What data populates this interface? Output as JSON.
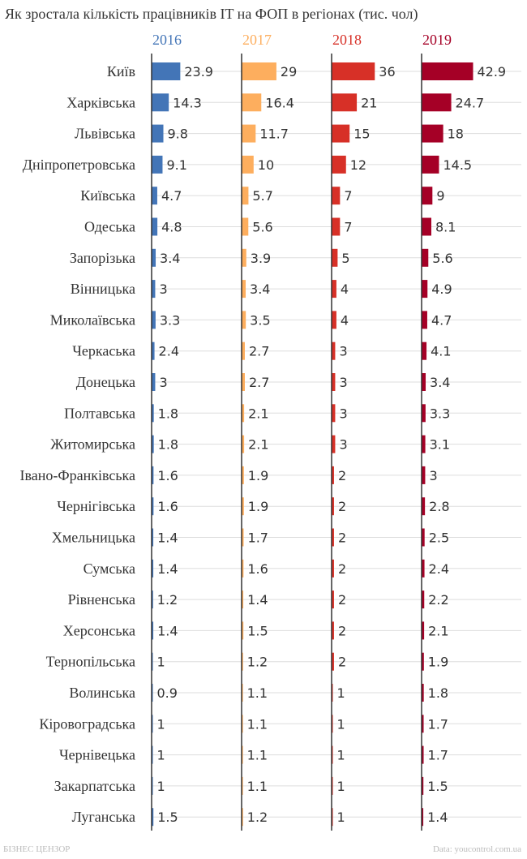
{
  "chart_data": {
    "type": "bar",
    "title": "Як зростала кількість працівників IT на ФОП в регіонах (тис. чол)",
    "categories": [
      "Київ",
      "Харківська",
      "Львівська",
      "Дніпропетровська",
      "Київська",
      "Одеська",
      "Запорізька",
      "Вінницька",
      "Миколаївська",
      "Черкаська",
      "Донецька",
      "Полтавська",
      "Житомирська",
      "Івано-Франківська",
      "Чернігівська",
      "Хмельницька",
      "Сумська",
      "Рівненська",
      "Херсонська",
      "Тернопільська",
      "Волинська",
      "Кіровоградська",
      "Чернівецька",
      "Закарпатська",
      "Луганська"
    ],
    "series": [
      {
        "name": "2016",
        "color": "#4375b7",
        "values": [
          "23.9",
          "14.3",
          "9.8",
          "9.1",
          "4.7",
          "4.8",
          "3.4",
          "3",
          "3.3",
          "2.4",
          "3",
          "1.8",
          "1.8",
          "1.6",
          "1.6",
          "1.4",
          "1.4",
          "1.2",
          "1.4",
          "1",
          "0.9",
          "1",
          "1",
          "1",
          "1.5"
        ]
      },
      {
        "name": "2017",
        "color": "#fdae5e",
        "values": [
          "29",
          "16.4",
          "11.7",
          "10",
          "5.7",
          "5.6",
          "3.9",
          "3.4",
          "3.5",
          "2.7",
          "2.7",
          "2.1",
          "2.1",
          "1.9",
          "1.9",
          "1.7",
          "1.6",
          "1.4",
          "1.5",
          "1.2",
          "1.1",
          "1.1",
          "1.1",
          "1.1",
          "1.2"
        ]
      },
      {
        "name": "2018",
        "color": "#d73027",
        "values": [
          "36",
          "21",
          "15",
          "12",
          "7",
          "7",
          "5",
          "4",
          "4",
          "3",
          "3",
          "3",
          "3",
          "2",
          "2",
          "2",
          "2",
          "2",
          "2",
          "2",
          "1",
          "1",
          "1",
          "1",
          "1"
        ]
      },
      {
        "name": "2019",
        "color": "#a50026",
        "values": [
          "42.9",
          "24.7",
          "18",
          "14.5",
          "9",
          "8.1",
          "5.6",
          "4.9",
          "4.7",
          "4.1",
          "3.4",
          "3.3",
          "3.1",
          "3",
          "2.8",
          "2.5",
          "2.4",
          "2.2",
          "2.1",
          "1.9",
          "1.8",
          "1.7",
          "1.7",
          "1.5",
          "1.4"
        ]
      }
    ],
    "grid": true,
    "legend": "column headers"
  },
  "footer": {
    "source_left": "БІЗНЕС ЦЕНЗОР",
    "source_right": "Data: youcontrol.com.ua"
  }
}
